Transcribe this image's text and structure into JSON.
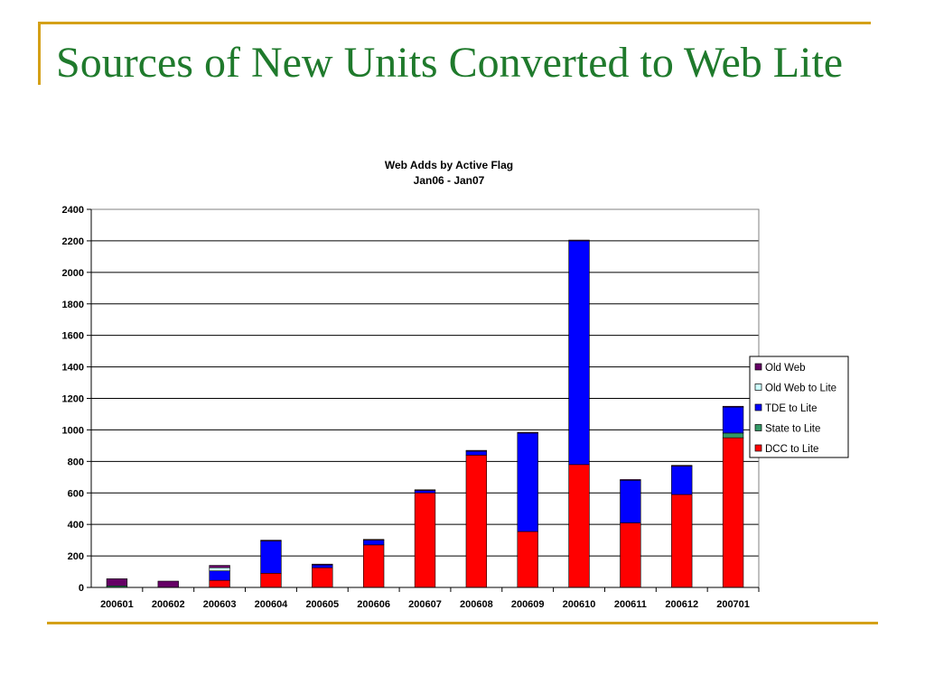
{
  "slide": {
    "title": "Sources of New Units Converted to Web Lite"
  },
  "chart_data": {
    "type": "bar",
    "stacked": true,
    "title": "Web Adds by Active Flag",
    "subtitle": "Jan06 - Jan07",
    "xlabel": "",
    "ylabel": "",
    "ylim": [
      0,
      2400
    ],
    "yticks": [
      0,
      200,
      400,
      600,
      800,
      1000,
      1200,
      1400,
      1600,
      1800,
      2000,
      2200,
      2400
    ],
    "grid": true,
    "legend_position": "right",
    "categories": [
      "200601",
      "200602",
      "200603",
      "200604",
      "200605",
      "200606",
      "200607",
      "200608",
      "200609",
      "200610",
      "200611",
      "200612",
      "200701"
    ],
    "series": [
      {
        "name": "DCC to Lite",
        "color": "#ff0000",
        "values": [
          0,
          0,
          45,
          90,
          125,
          270,
          600,
          840,
          355,
          780,
          410,
          590,
          950
        ]
      },
      {
        "name": "State to Lite",
        "color": "#339966",
        "values": [
          10,
          0,
          0,
          0,
          0,
          0,
          0,
          0,
          0,
          0,
          0,
          0,
          30
        ]
      },
      {
        "name": "TDE to Lite",
        "color": "#0000ff",
        "values": [
          0,
          0,
          60,
          205,
          18,
          30,
          15,
          25,
          625,
          1420,
          270,
          180,
          165
        ]
      },
      {
        "name": "Old Web to Lite",
        "color": "#ccffff",
        "values": [
          0,
          0,
          20,
          0,
          0,
          0,
          0,
          0,
          0,
          0,
          0,
          0,
          0
        ]
      },
      {
        "name": "Old Web",
        "color": "#660066",
        "values": [
          45,
          40,
          15,
          5,
          5,
          5,
          5,
          5,
          5,
          5,
          5,
          5,
          5
        ]
      }
    ],
    "legend_order": [
      "Old Web",
      "Old Web to Lite",
      "TDE to Lite",
      "State to Lite",
      "DCC to Lite"
    ]
  }
}
